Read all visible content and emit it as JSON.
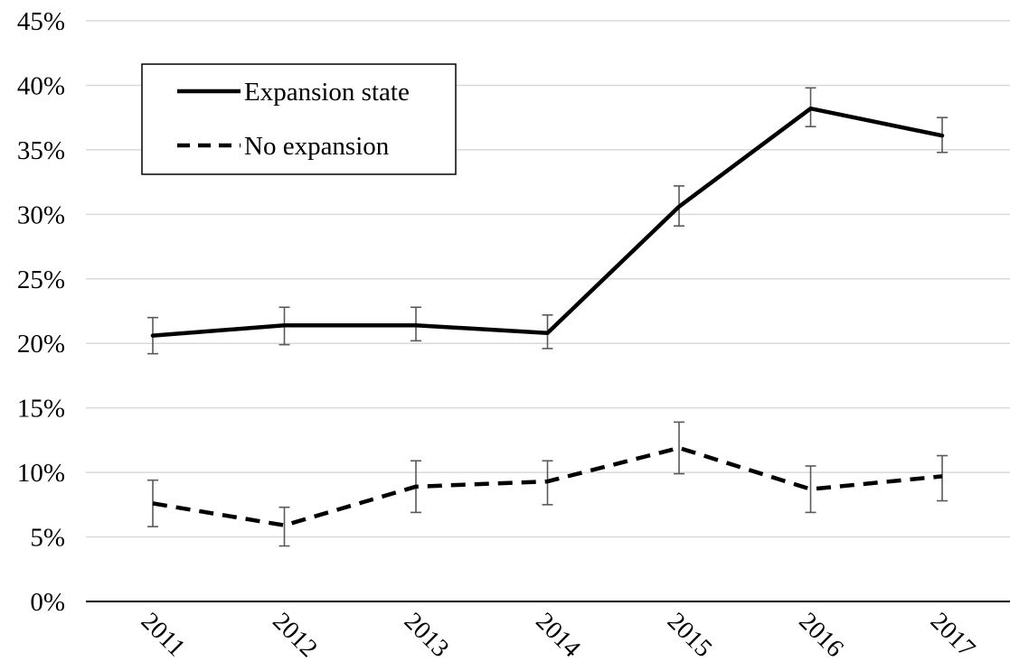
{
  "chart_data": {
    "type": "line",
    "title": "",
    "xlabel": "",
    "ylabel": "",
    "categories": [
      "2011",
      "2012",
      "2013",
      "2014",
      "2015",
      "2016",
      "2017"
    ],
    "ylim": [
      0,
      45
    ],
    "y_ticks": [
      0,
      5,
      10,
      15,
      20,
      25,
      30,
      35,
      40,
      45
    ],
    "y_tick_labels": [
      "0%",
      "5%",
      "10%",
      "15%",
      "20%",
      "25%",
      "30%",
      "35%",
      "40%",
      "45%"
    ],
    "grid": "horizontal",
    "legend_position": "top-left",
    "series": [
      {
        "name": "Expansion state",
        "style": "solid",
        "color": "#000000",
        "values": [
          20.6,
          21.4,
          21.4,
          20.8,
          30.6,
          38.2,
          36.1
        ],
        "error_low": [
          19.2,
          19.9,
          20.2,
          19.6,
          29.1,
          36.8,
          34.8
        ],
        "error_high": [
          22.0,
          22.8,
          22.8,
          22.2,
          32.2,
          39.8,
          37.5
        ]
      },
      {
        "name": "No expansion",
        "style": "dashed",
        "color": "#000000",
        "values": [
          7.6,
          5.9,
          8.9,
          9.3,
          11.9,
          8.7,
          9.7
        ],
        "error_low": [
          5.8,
          4.3,
          6.9,
          7.5,
          9.9,
          6.9,
          7.8
        ],
        "error_high": [
          9.4,
          7.3,
          10.9,
          10.9,
          13.9,
          10.5,
          11.3
        ]
      }
    ],
    "error_bar_color": "#595959",
    "grid_color": "#d9d9d9"
  }
}
